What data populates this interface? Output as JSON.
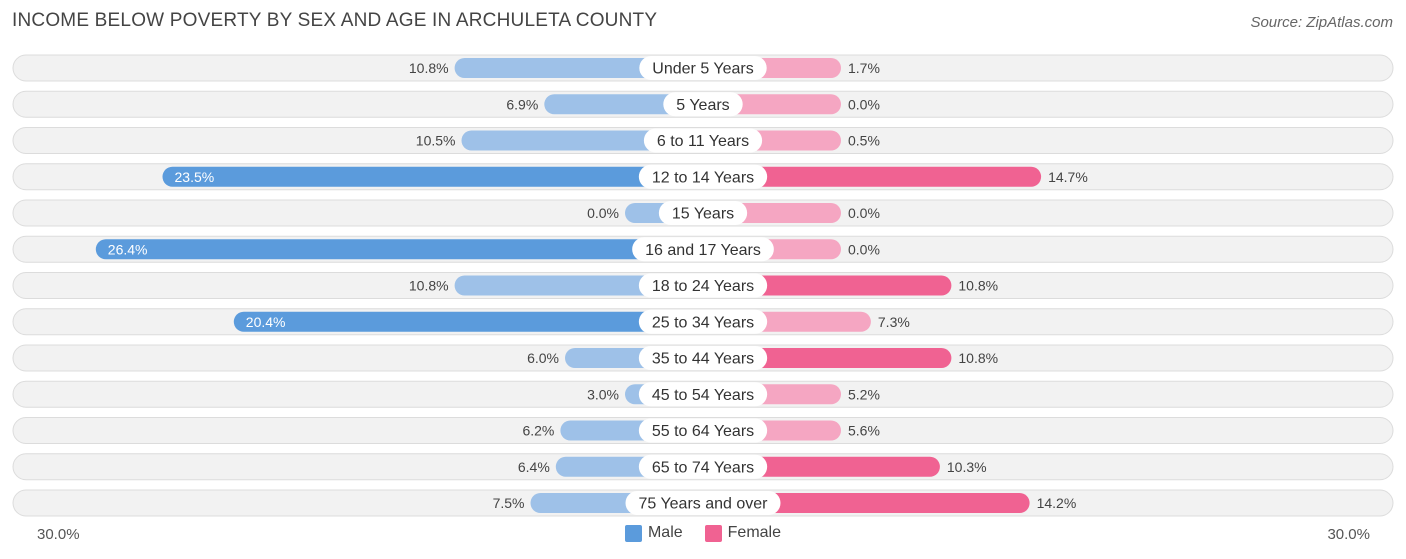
{
  "header": {
    "title": "INCOME BELOW POVERTY BY SEX AND AGE IN ARCHULETA COUNTY",
    "source": "Source: ZipAtlas.com"
  },
  "axis": {
    "left_label": "30.0%",
    "right_label": "30.0%"
  },
  "legend": {
    "male": "Male",
    "female": "Female"
  },
  "colors": {
    "male_strong": "#5b9bdc",
    "male_light": "#9ec1e8",
    "female_strong": "#f06292",
    "female_light": "#f5a6c2",
    "row_bg": "#f2f2f2",
    "row_border": "#dcdcdc"
  },
  "chart_data": {
    "type": "bar",
    "orientation": "horizontal-diverging",
    "title": "INCOME BELOW POVERTY BY SEX AND AGE IN ARCHULETA COUNTY",
    "xlim": [
      0,
      30
    ],
    "unit": "%",
    "categories": [
      "Under 5 Years",
      "5 Years",
      "6 to 11 Years",
      "12 to 14 Years",
      "15 Years",
      "16 and 17 Years",
      "18 to 24 Years",
      "25 to 34 Years",
      "35 to 44 Years",
      "45 to 54 Years",
      "55 to 64 Years",
      "65 to 74 Years",
      "75 Years and over"
    ],
    "series": [
      {
        "name": "Male",
        "values": [
          10.8,
          6.9,
          10.5,
          23.5,
          0.0,
          26.4,
          10.8,
          20.4,
          6.0,
          3.0,
          6.2,
          6.4,
          7.5
        ],
        "labels": [
          "10.8%",
          "6.9%",
          "10.5%",
          "23.5%",
          "0.0%",
          "26.4%",
          "10.8%",
          "20.4%",
          "6.0%",
          "3.0%",
          "6.2%",
          "6.4%",
          "7.5%"
        ]
      },
      {
        "name": "Female",
        "values": [
          1.7,
          0.0,
          0.5,
          14.7,
          0.0,
          0.0,
          10.8,
          7.3,
          10.8,
          5.2,
          5.6,
          10.3,
          14.2
        ],
        "labels": [
          "1.7%",
          "0.0%",
          "0.5%",
          "14.7%",
          "0.0%",
          "0.0%",
          "10.8%",
          "7.3%",
          "10.8%",
          "5.2%",
          "5.6%",
          "10.3%",
          "14.2%"
        ]
      }
    ]
  }
}
